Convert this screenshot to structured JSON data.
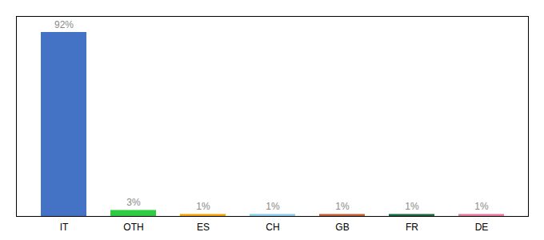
{
  "chart_data": {
    "type": "bar",
    "categories": [
      "IT",
      "OTH",
      "ES",
      "CH",
      "GB",
      "FR",
      "DE"
    ],
    "values": [
      92,
      3,
      1,
      1,
      1,
      1,
      1
    ],
    "value_labels": [
      "92%",
      "3%",
      "1%",
      "1%",
      "1%",
      "1%",
      "1%"
    ],
    "colors": [
      "#4472c4",
      "#2ecc40",
      "#f0a500",
      "#87ceeb",
      "#c0622e",
      "#1a6b3a",
      "#e879a0"
    ],
    "ylim": [
      0,
      100
    ],
    "data_labels": true,
    "tick_labels": "x",
    "grid": false
  }
}
